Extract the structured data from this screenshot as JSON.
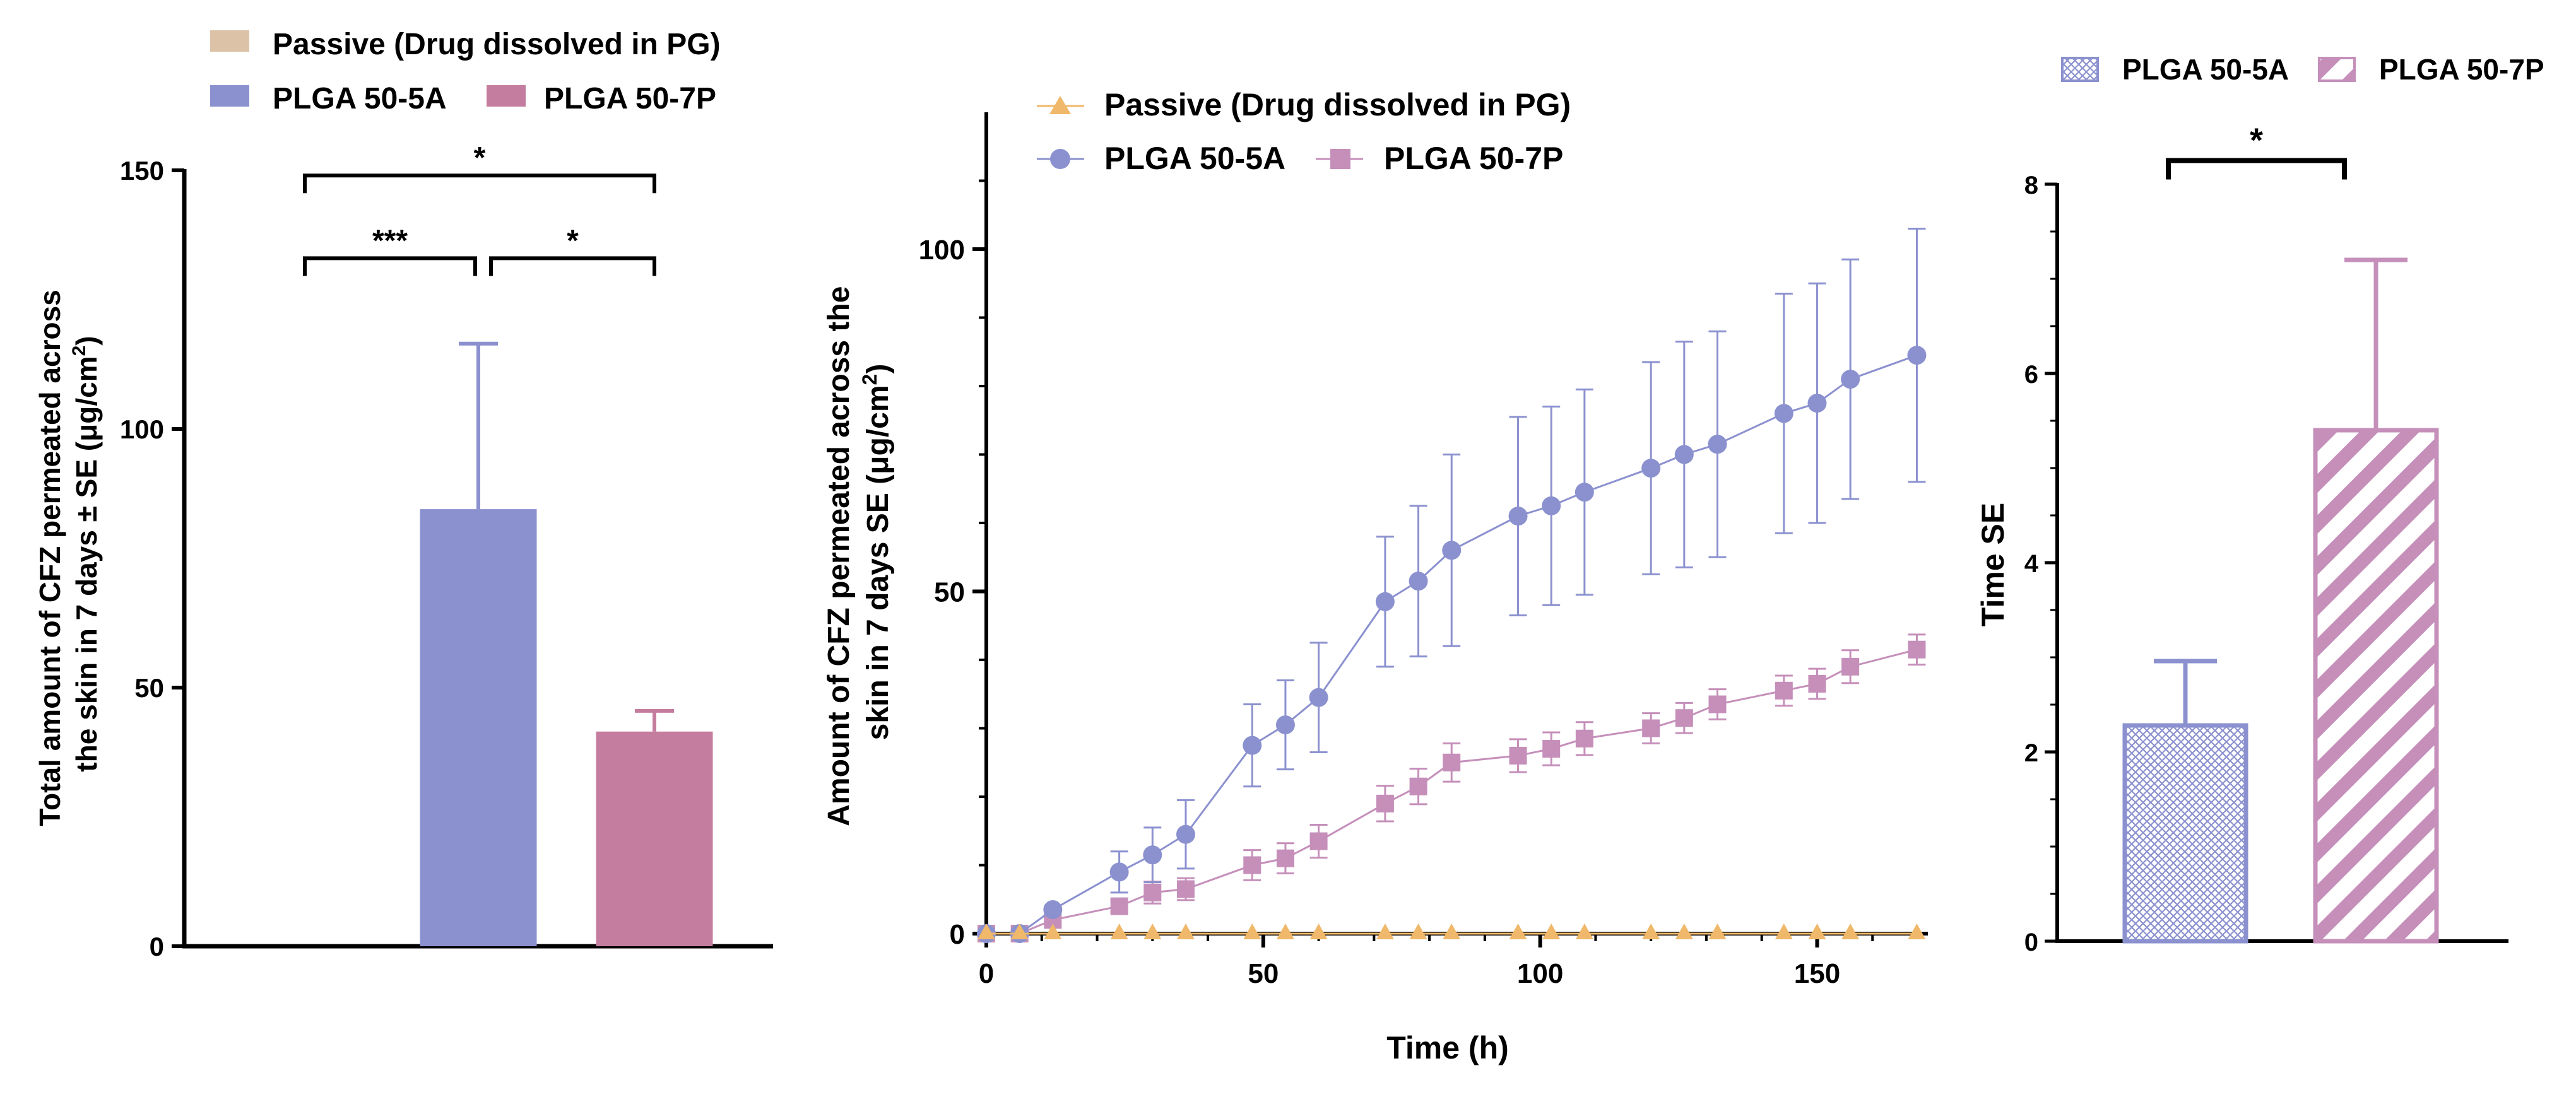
{
  "colors": {
    "passive": "#dcc3a8",
    "plga5a": "#8b91cf",
    "plga7p": "#c47d9e",
    "plga7p_line": "#c58fba",
    "passive_line": "#f0b86a",
    "axis": "#000000"
  },
  "chart_data": [
    {
      "type": "bar",
      "ylabel_line1": "Total amount of CFZ permeated across",
      "ylabel_line2_pre": "the skin in 7 days ± SE (μg/cm",
      "ylabel_sup": "2",
      "ylabel_post": ")",
      "ylim": [
        0,
        150
      ],
      "yticks": [
        0,
        50,
        100,
        150
      ],
      "legend_position": "top-left",
      "series": [
        {
          "name": "Passive (Drug dissolved in PG)",
          "value": 0,
          "error": 0,
          "color": "#dcc3a8"
        },
        {
          "name": "PLGA 50-5A",
          "value": 84.5,
          "error": 32,
          "color": "#8b91cf"
        },
        {
          "name": "PLGA 50-7P",
          "value": 41.5,
          "error": 4,
          "color": "#c47d9e"
        }
      ],
      "significance": [
        {
          "from": 0,
          "to": 2,
          "label": "*",
          "y": 149
        },
        {
          "from": 0,
          "to": 1,
          "label": "***",
          "y": 133
        },
        {
          "from": 1,
          "to": 2,
          "label": "*",
          "y": 133
        }
      ]
    },
    {
      "type": "line",
      "xlabel": "Time (h)",
      "ylabel_line1": "Amount of CFZ permeated across the",
      "ylabel_line2_pre": "skin in 7 days SE (μg/cm",
      "ylabel_sup": "2",
      "ylabel_post": ")",
      "xlim": [
        0,
        170
      ],
      "ylim": [
        0,
        120
      ],
      "xticks": [
        0,
        50,
        100,
        150
      ],
      "yticks": [
        0,
        50,
        100
      ],
      "legend_position": "top-left",
      "x": [
        0,
        6,
        12,
        24,
        30,
        36,
        48,
        54,
        60,
        72,
        78,
        84,
        96,
        102,
        108,
        120,
        126,
        132,
        144,
        150,
        156,
        168
      ],
      "series": [
        {
          "name": "Passive (Drug dissolved in PG)",
          "marker": "triangle",
          "color": "#f0b86a",
          "values": [
            0,
            0,
            0,
            0,
            0,
            0,
            0,
            0,
            0,
            0,
            0,
            0,
            0,
            0,
            0,
            0,
            0,
            0,
            0,
            0,
            0,
            0
          ],
          "errors": [
            0,
            0,
            0,
            0,
            0,
            0,
            0,
            0,
            0,
            0,
            0,
            0,
            0,
            0,
            0,
            0,
            0,
            0,
            0,
            0,
            0,
            0
          ]
        },
        {
          "name": "PLGA 50-5A",
          "marker": "circle",
          "color": "#8b91cf",
          "values": [
            0,
            0,
            3.5,
            9,
            11.5,
            14.5,
            27.5,
            30.5,
            34.5,
            48.5,
            51.5,
            56,
            61,
            62.5,
            64.5,
            68,
            70,
            71.5,
            76,
            77.5,
            81,
            84.5
          ],
          "errors": [
            0,
            0,
            0.5,
            3,
            4,
            5,
            6,
            6.5,
            8,
            9.5,
            11,
            14,
            14.5,
            14.5,
            15,
            15.5,
            16.5,
            16.5,
            17.5,
            17.5,
            17.5,
            18.5
          ]
        },
        {
          "name": "PLGA 50-7P",
          "marker": "square",
          "color": "#c58fba",
          "values": [
            0,
            0,
            2,
            4,
            6,
            6.5,
            10,
            11,
            13.5,
            19,
            21.5,
            25,
            26,
            27,
            28.5,
            30,
            31.5,
            33.5,
            35.5,
            36.5,
            39,
            41.5
          ],
          "errors": [
            0,
            0,
            0.3,
            0.8,
            1.6,
            1.6,
            2.2,
            2.2,
            2.4,
            2.6,
            2.6,
            2.8,
            2.4,
            2.4,
            2.4,
            2.2,
            2.2,
            2.2,
            2.2,
            2.2,
            2.4,
            2.2
          ]
        }
      ]
    },
    {
      "type": "bar",
      "ylabel": "Time SE",
      "ylim": [
        0,
        8
      ],
      "yticks": [
        0,
        2,
        4,
        6,
        8
      ],
      "legend_position": "top",
      "series": [
        {
          "name": "PLGA 50-5A",
          "value": 2.28,
          "error": 0.68,
          "pattern": "crosshatch",
          "color": "#8b91cf"
        },
        {
          "name": "PLGA 50-7P",
          "value": 5.4,
          "error": 1.8,
          "pattern": "diagonal",
          "color": "#c58fba"
        }
      ],
      "significance": [
        {
          "from": 0,
          "to": 1,
          "label": "*",
          "y": 8.25
        }
      ]
    }
  ]
}
